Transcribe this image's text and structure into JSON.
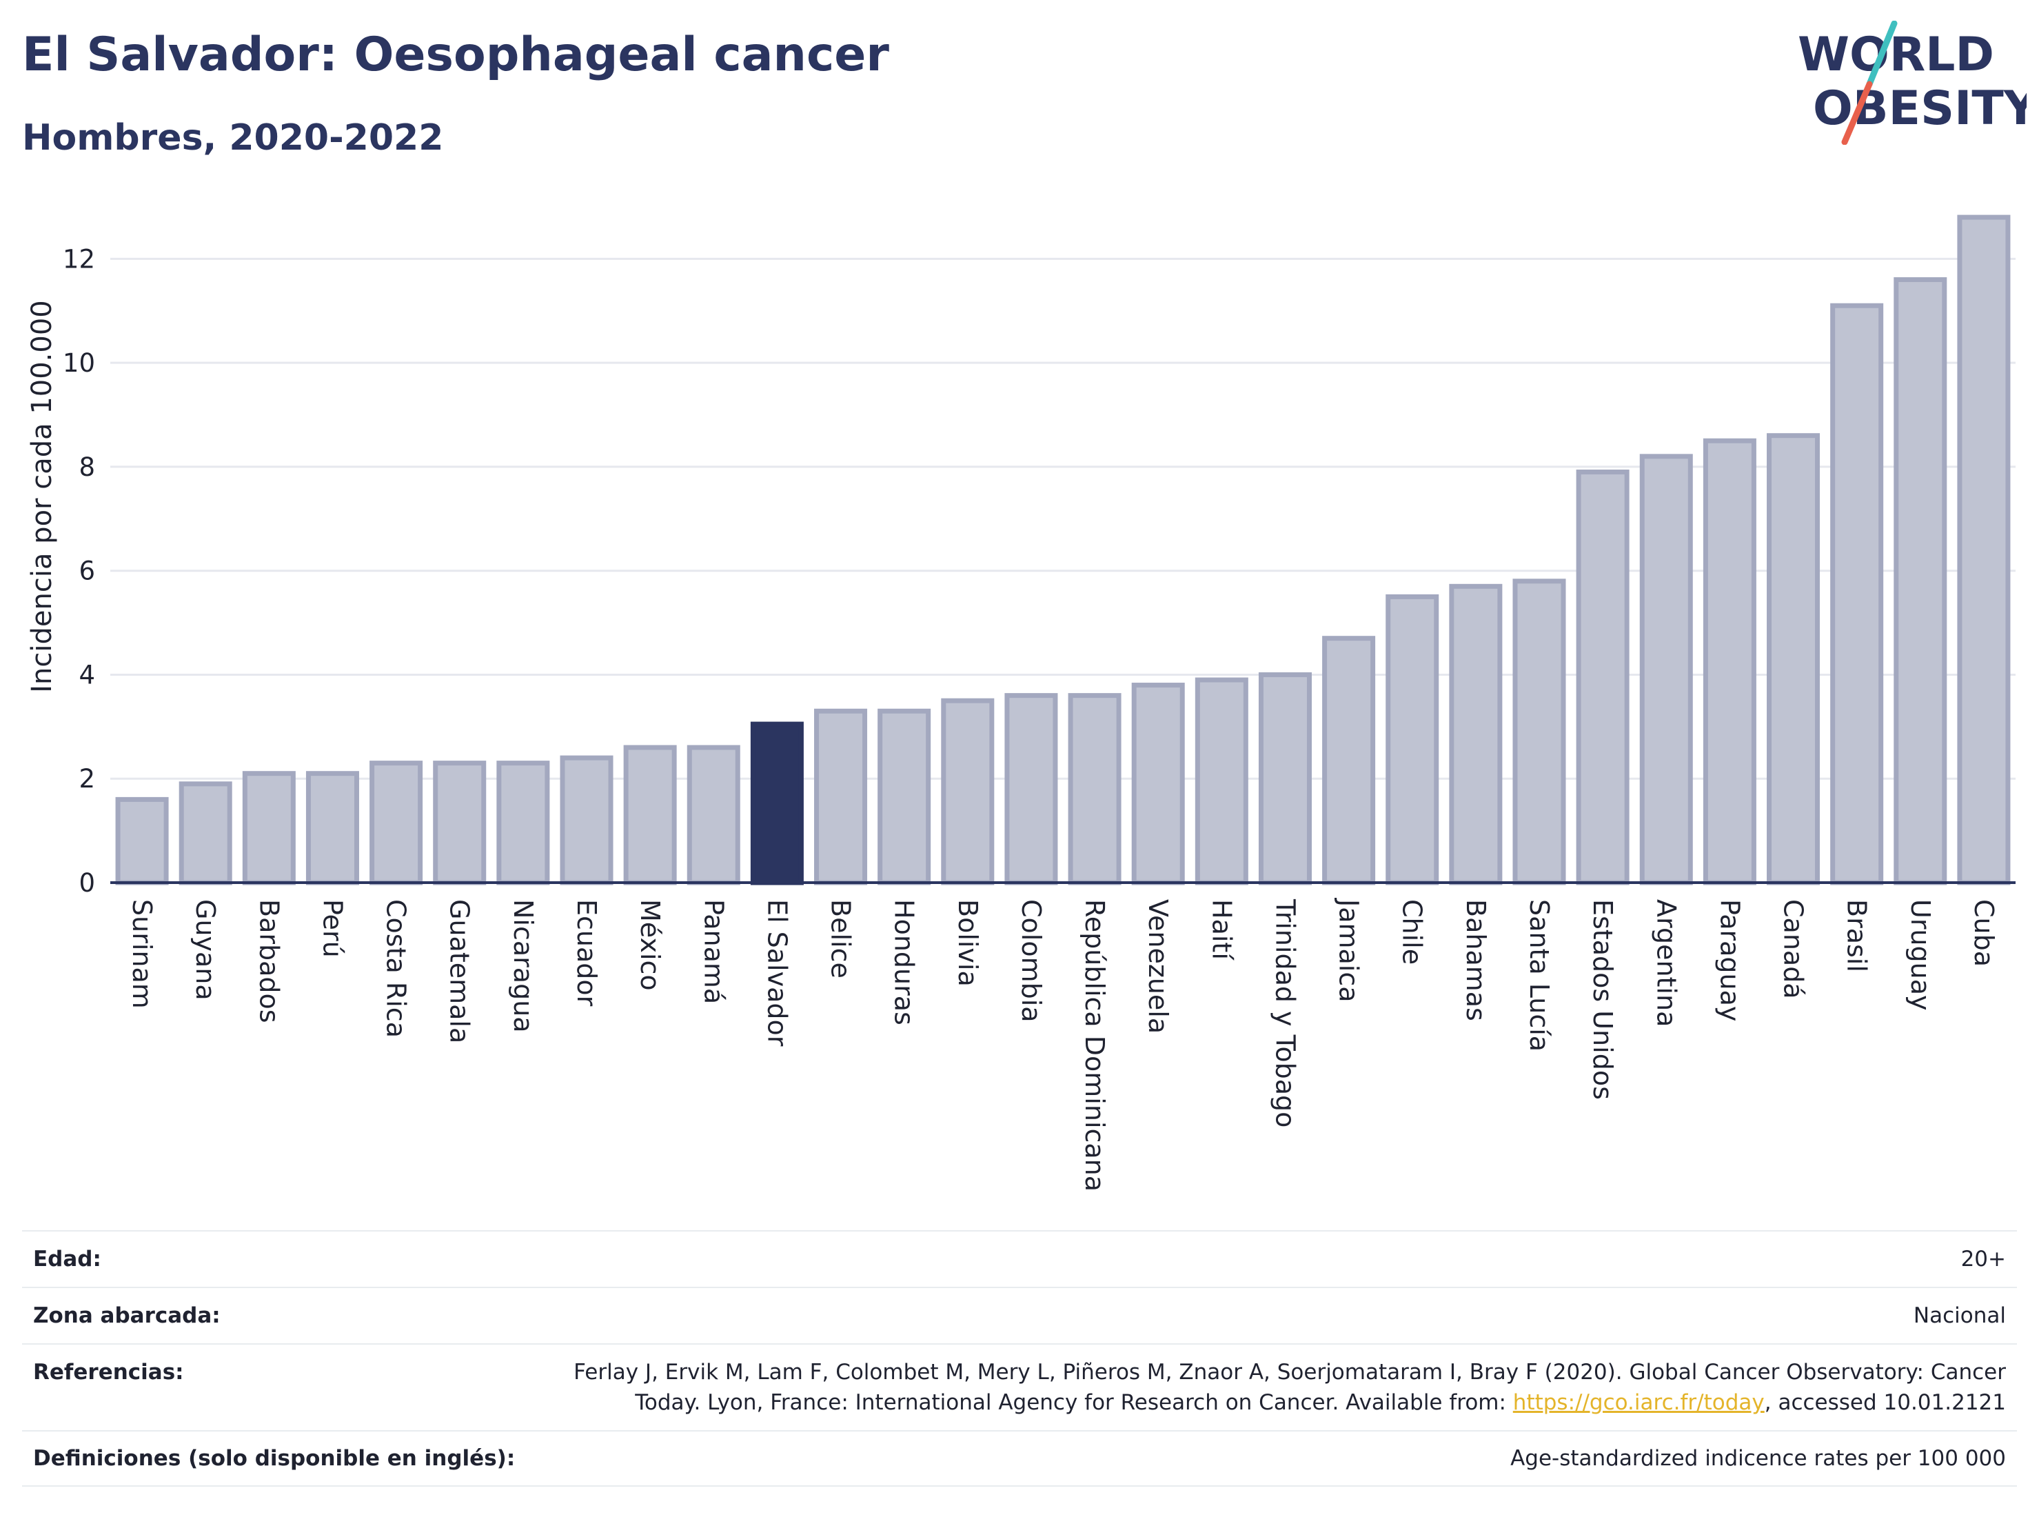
{
  "header": {
    "title": "El Salvador: Oesophageal cancer",
    "subtitle": "Hombres, 2020-2022"
  },
  "logo": {
    "line1": "WORLD",
    "line2": "OBESITY",
    "slash_colors": [
      "#3fbfbf",
      "#e8604c"
    ]
  },
  "colors": {
    "bar": "#bfc3d2",
    "bar_border": "#a3a8bf",
    "highlight": "#2b3560",
    "grid": "#e6e8ee",
    "axis": "#2b3560",
    "text": "#1f2230"
  },
  "chart_data": {
    "type": "bar",
    "title": "El Salvador: Oesophageal cancer",
    "subtitle": "Hombres, 2020-2022",
    "ylabel": "Incidencia por cada 100.000",
    "xlabel": "",
    "ylim": [
      0,
      13
    ],
    "yticks": [
      0,
      2,
      4,
      6,
      8,
      10,
      12
    ],
    "grid": true,
    "highlight_category": "El Salvador",
    "categories": [
      "Surinam",
      "Guyana",
      "Barbados",
      "Perú",
      "Costa Rica",
      "Guatemala",
      "Nicaragua",
      "Ecuador",
      "México",
      "Panamá",
      "El Salvador",
      "Belice",
      "Honduras",
      "Bolivia",
      "Colombia",
      "República Dominicana",
      "Venezuela",
      "Haití",
      "Trinidad y Tobago",
      "Jamaica",
      "Chile",
      "Bahamas",
      "Santa Lucía",
      "Estados Unidos",
      "Argentina",
      "Paraguay",
      "Canadá",
      "Brasil",
      "Uruguay",
      "Cuba"
    ],
    "values": [
      1.6,
      1.9,
      2.1,
      2.1,
      2.3,
      2.3,
      2.3,
      2.4,
      2.6,
      2.6,
      3.05,
      3.3,
      3.3,
      3.5,
      3.6,
      3.6,
      3.8,
      3.9,
      4.0,
      4.7,
      5.5,
      5.7,
      5.8,
      7.9,
      8.2,
      8.5,
      8.6,
      11.1,
      11.6,
      12.8
    ]
  },
  "meta": {
    "rows": [
      {
        "label": "Edad:",
        "value": "20+"
      },
      {
        "label": "Zona abarcada:",
        "value": "Nacional"
      },
      {
        "label": "Referencias:",
        "value_pre": "Ferlay J, Ervik M, Lam F, Colombet M, Mery L, Piñeros M, Znaor A, Soerjomataram I, Bray F (2020). Global Cancer Observatory: Cancer Today. Lyon, France: International Agency for Research on Cancer. Available from: ",
        "link": "https://gco.iarc.fr/today",
        "value_post": ", accessed 10.01.2121"
      },
      {
        "label": "Definiciones (solo disponible en inglés):",
        "value": "Age-standardized indicence rates per 100 000"
      }
    ]
  }
}
